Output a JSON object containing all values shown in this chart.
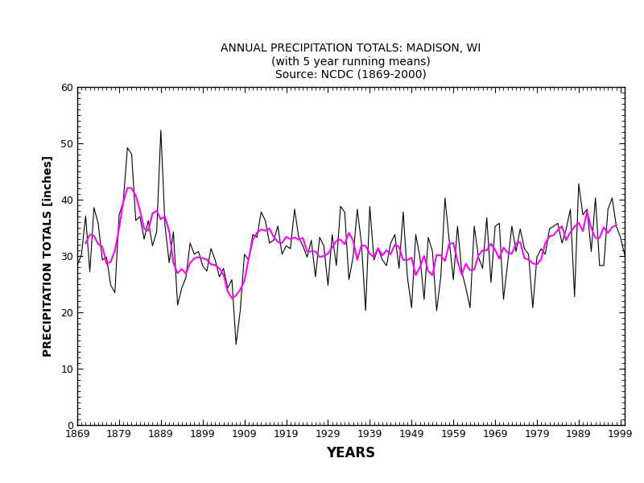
{
  "title_line1": "ANNUAL PRECIPITATION TOTALS: MADISON, WI",
  "title_line2": "(with 5 year running means)",
  "title_line3": "Source: NCDC (1869-2000)",
  "xlabel": "YEARS",
  "ylabel": "PRECIPITATION TOTALS [inches]",
  "xlim": [
    1869,
    2000
  ],
  "ylim": [
    0,
    60
  ],
  "yticks": [
    0,
    10,
    20,
    30,
    40,
    50,
    60
  ],
  "xticks": [
    1869,
    1879,
    1889,
    1899,
    1909,
    1919,
    1929,
    1939,
    1949,
    1959,
    1969,
    1979,
    1989,
    1999
  ],
  "precip_color": "#000000",
  "running_mean_color": "#ff00ff",
  "background_color": "#ffffff",
  "years": [
    1869,
    1870,
    1871,
    1872,
    1873,
    1874,
    1875,
    1876,
    1877,
    1878,
    1879,
    1880,
    1881,
    1882,
    1883,
    1884,
    1885,
    1886,
    1887,
    1888,
    1889,
    1890,
    1891,
    1892,
    1893,
    1894,
    1895,
    1896,
    1897,
    1898,
    1899,
    1900,
    1901,
    1902,
    1903,
    1904,
    1905,
    1906,
    1907,
    1908,
    1909,
    1910,
    1911,
    1912,
    1913,
    1914,
    1915,
    1916,
    1917,
    1918,
    1919,
    1920,
    1921,
    1922,
    1923,
    1924,
    1925,
    1926,
    1927,
    1928,
    1929,
    1930,
    1931,
    1932,
    1933,
    1934,
    1935,
    1936,
    1937,
    1938,
    1939,
    1940,
    1941,
    1942,
    1943,
    1944,
    1945,
    1946,
    1947,
    1948,
    1949,
    1950,
    1951,
    1952,
    1953,
    1954,
    1955,
    1956,
    1957,
    1958,
    1959,
    1960,
    1961,
    1962,
    1963,
    1964,
    1965,
    1966,
    1967,
    1968,
    1969,
    1970,
    1971,
    1972,
    1973,
    1974,
    1975,
    1976,
    1977,
    1978,
    1979,
    1980,
    1981,
    1982,
    1983,
    1984,
    1985,
    1986,
    1987,
    1988,
    1989,
    1990,
    1991,
    1992,
    1993,
    1994,
    1995,
    1996,
    1997,
    1998,
    1999,
    2000
  ],
  "precip": [
    28.4,
    30.2,
    37.1,
    27.2,
    38.6,
    35.8,
    29.3,
    29.8,
    24.8,
    23.5,
    37.2,
    39.6,
    49.2,
    48.1,
    36.3,
    37.0,
    33.0,
    36.3,
    31.8,
    34.3,
    52.3,
    35.3,
    28.8,
    34.3,
    21.3,
    24.3,
    26.2,
    32.3,
    30.3,
    30.8,
    28.3,
    27.3,
    31.3,
    29.3,
    26.3,
    27.8,
    24.3,
    25.8,
    14.3,
    20.3,
    30.3,
    29.3,
    33.8,
    33.3,
    37.8,
    36.3,
    32.3,
    32.8,
    35.3,
    30.3,
    31.8,
    31.3,
    38.3,
    33.3,
    31.8,
    29.8,
    32.8,
    26.3,
    33.3,
    31.8,
    24.8,
    33.8,
    28.3,
    38.8,
    37.8,
    25.8,
    29.8,
    38.3,
    32.3,
    20.3,
    38.8,
    29.3,
    31.3,
    29.3,
    28.3,
    32.3,
    33.8,
    27.8,
    37.8,
    26.3,
    20.8,
    33.8,
    29.8,
    22.3,
    33.3,
    30.8,
    20.3,
    26.3,
    40.3,
    32.8,
    25.8,
    35.3,
    27.3,
    24.3,
    20.8,
    35.3,
    29.8,
    27.8,
    36.8,
    25.3,
    35.3,
    35.8,
    22.3,
    28.8,
    35.3,
    30.8,
    34.8,
    31.3,
    30.3,
    20.8,
    29.8,
    31.3,
    30.3,
    34.8,
    35.3,
    35.8,
    32.3,
    34.8,
    38.3,
    22.8,
    42.8,
    37.3,
    38.3,
    30.8,
    40.3,
    28.3,
    28.3,
    38.3,
    40.3,
    35.3,
    33.3,
    30.2
  ]
}
